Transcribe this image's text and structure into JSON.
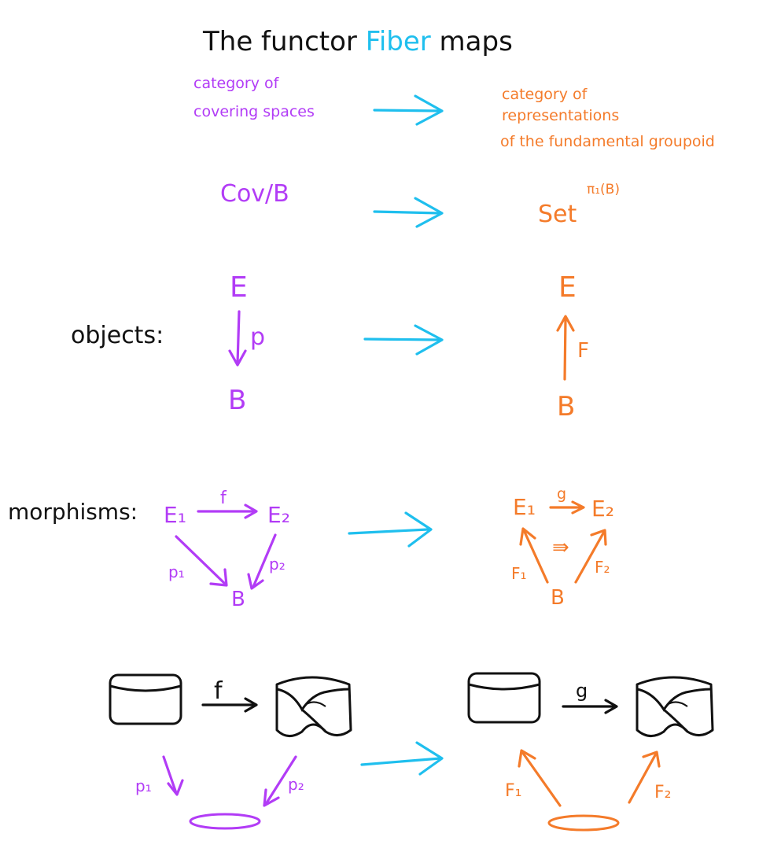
{
  "title": {
    "prefix": "The functor ",
    "highlight": "Fiber",
    "suffix": " maps"
  },
  "top_row": {
    "left": [
      "category of",
      "covering spaces"
    ],
    "right": [
      "category of",
      "representations",
      "of the fundamental groupoid"
    ]
  },
  "second_row": {
    "left": "Cov/B",
    "right_base": "Set",
    "right_exponent": "π₁(B)"
  },
  "objects": {
    "label": "objects:",
    "left": {
      "top": "E",
      "map": "p",
      "bottom": "B"
    },
    "right": {
      "top": "E",
      "map": "F",
      "bottom": "B"
    }
  },
  "morphisms": {
    "label": "morphisms:",
    "left": {
      "e1": "E₁",
      "f": "f",
      "e2": "E₂",
      "p1": "p₁",
      "p2": "p₂",
      "b": "B"
    },
    "right": {
      "e1": "E₁",
      "g": "g",
      "e2": "E₂",
      "nat": "⇛",
      "f1": "F₁",
      "f2": "F₂",
      "b": "B"
    }
  },
  "pictures": {
    "left": {
      "f": "f",
      "p1": "p₁",
      "p2": "p₂"
    },
    "right": {
      "g": "g",
      "f1": "F₁",
      "f2": "F₂"
    }
  },
  "colors": {
    "covering": "#b23cf6",
    "representation": "#f47b2a",
    "functor": "#1fbfee",
    "ink": "#111111"
  }
}
